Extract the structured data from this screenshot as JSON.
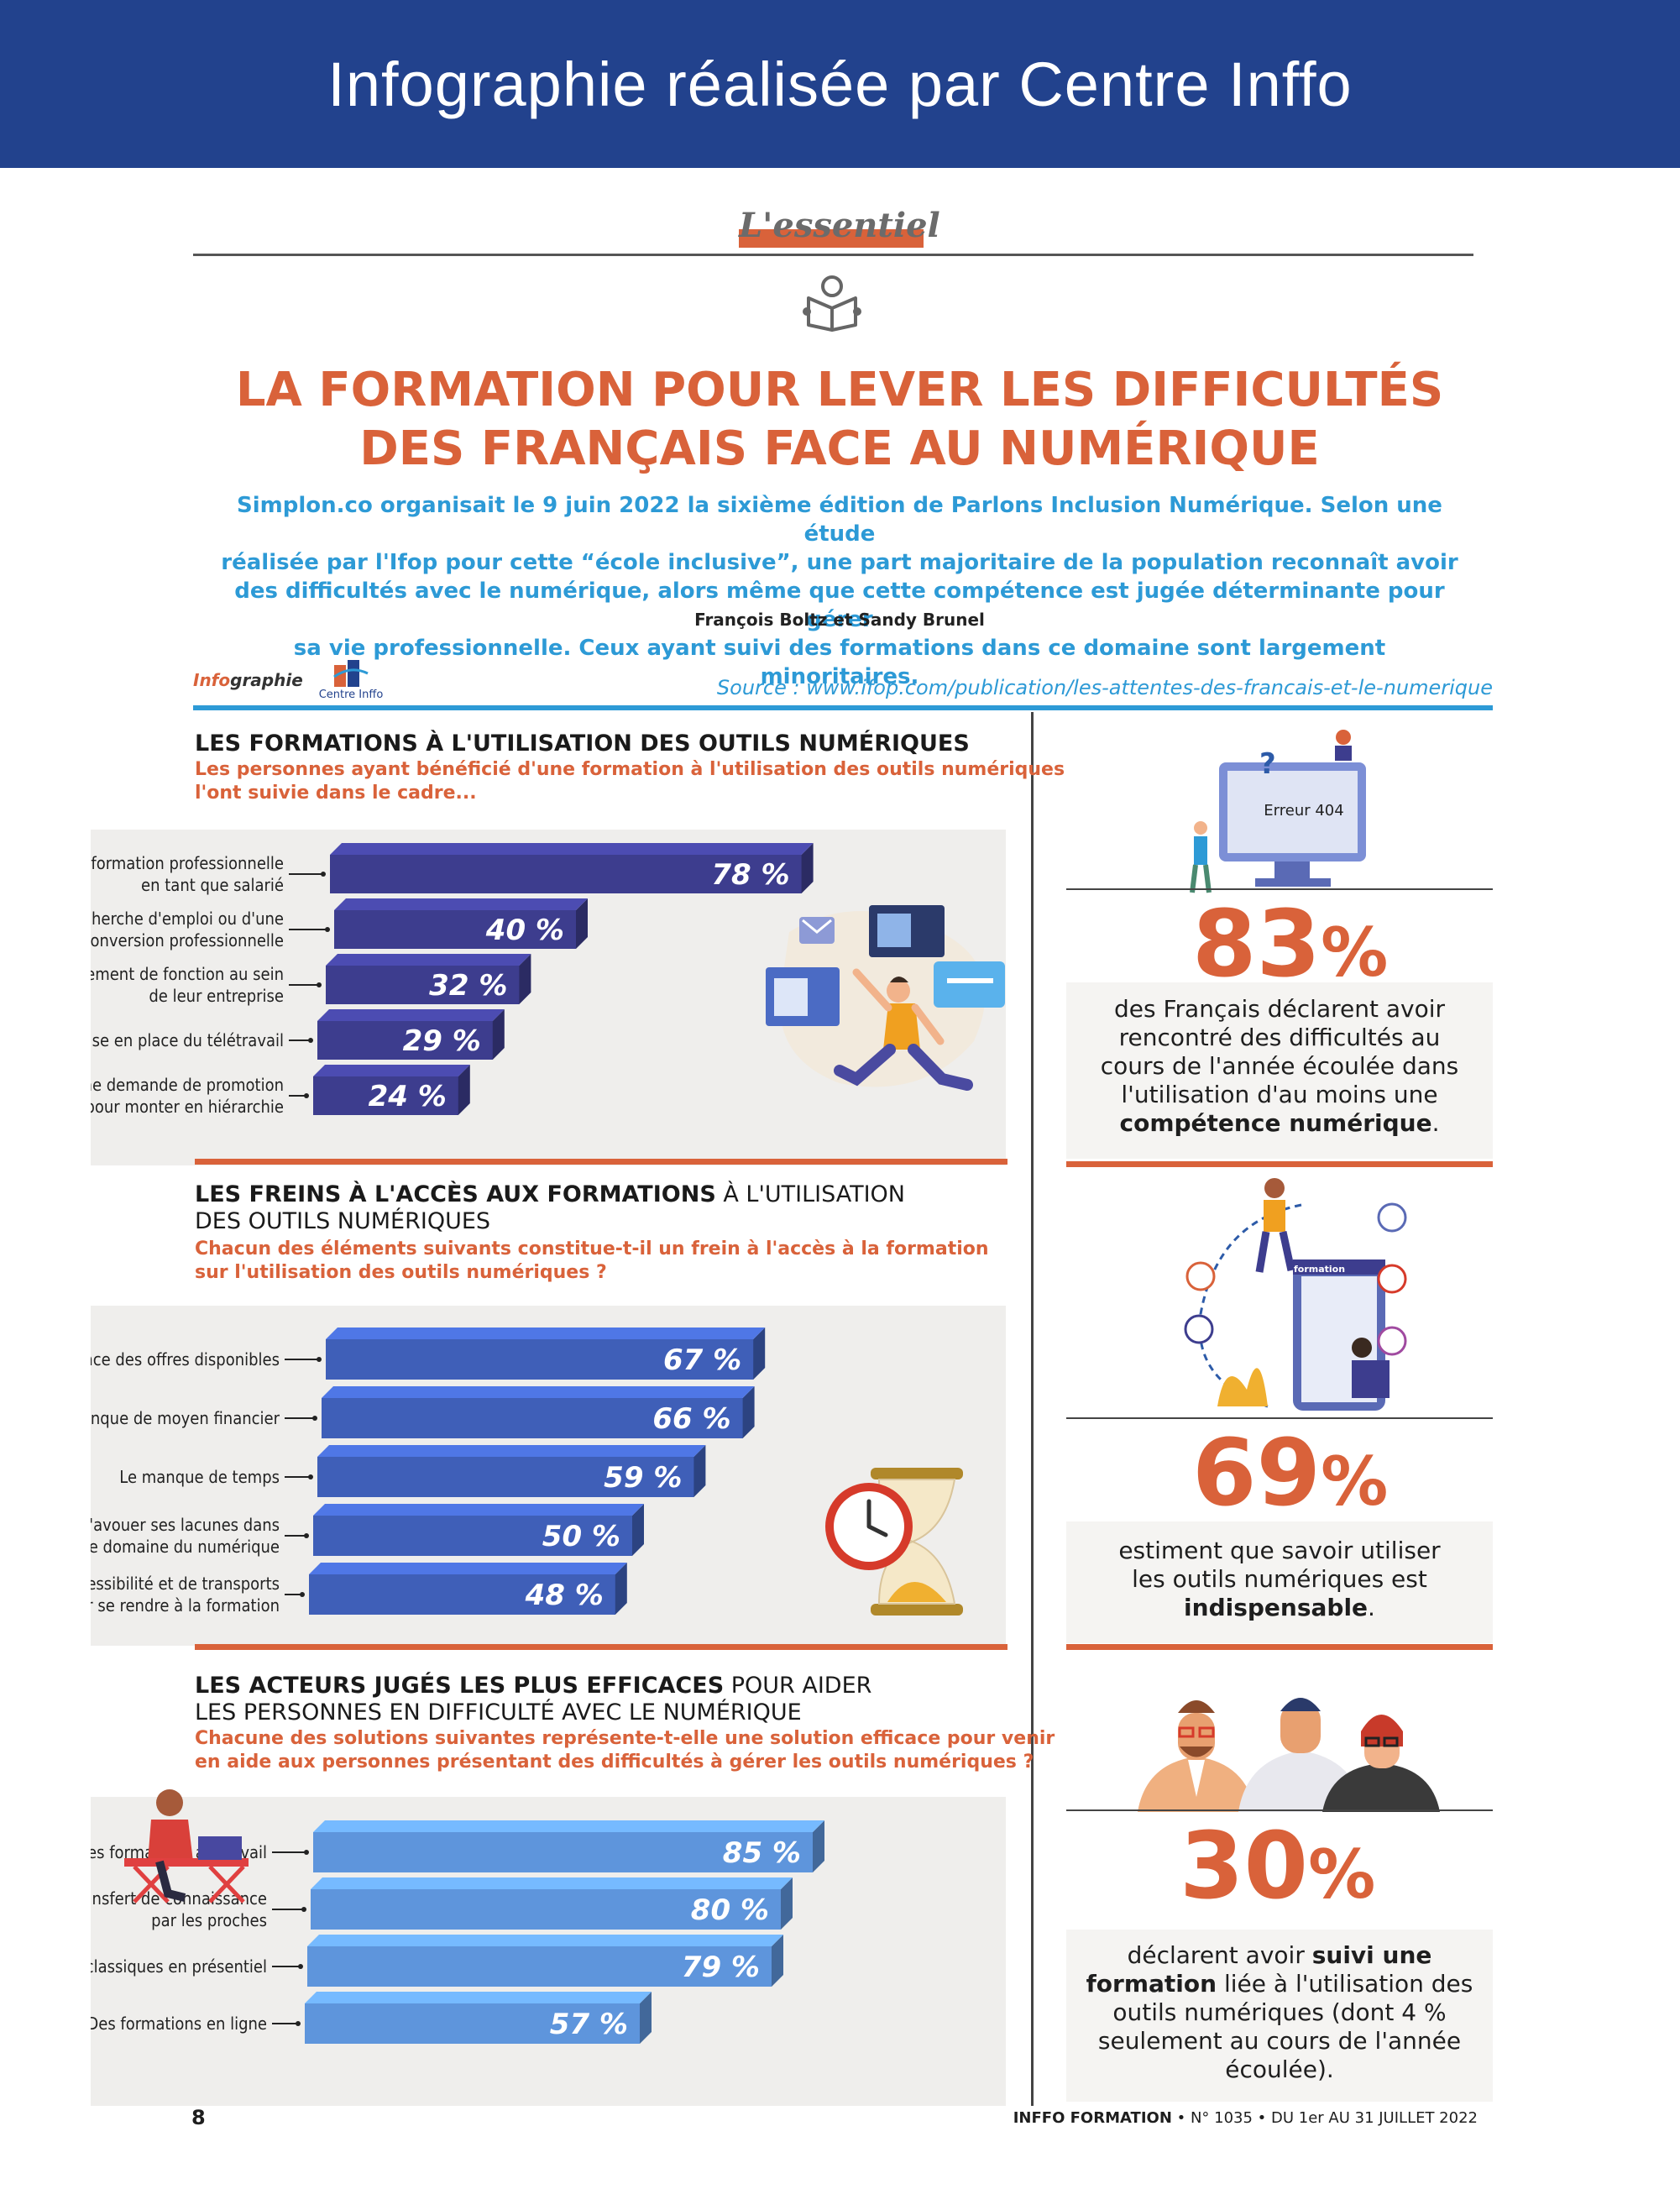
{
  "banner": {
    "title": "Infographie réalisée par Centre Inffo"
  },
  "header": {
    "tag": "L'essentiel",
    "title_line1": "LA FORMATION POUR LEVER LES DIFFICULTÉS",
    "title_line2": "DES FRANÇAIS FACE AU NUMÉRIQUE",
    "intro": [
      "Simplon.co organisait le 9 juin 2022 la sixième édition de Parlons Inclusion Numérique. Selon une étude",
      "réalisée par l'Ifop pour cette “école inclusive”, une part majoritaire de la population reconnaît avoir",
      "des difficultés avec le numérique, alors même que cette compétence est jugée déterminante pour gérer",
      "sa vie professionnelle. Ceux ayant suivi des formations dans ce domaine sont largement minoritaires."
    ],
    "authors": "François Boltz et Sandy Brunel",
    "infographie_prefix": "Info",
    "infographie_suffix": "graphie",
    "logo_text": "Centre Inffo",
    "source": "Source : www.ifop.com/publication/les-attentes-des-francais-et-le-numerique"
  },
  "stats": [
    {
      "value": "83",
      "pct": "%",
      "screen_text": "Erreur 404",
      "lines": [
        "des Français déclarent avoir",
        "rencontré des difficultés au",
        "cours de l'année écoulée dans",
        "l'utilisation d'au moins une"
      ],
      "bold_tail": "compétence numérique",
      "tail_end": "."
    },
    {
      "value": "69",
      "pct": "%",
      "screen_text": "formation",
      "lines": [
        "estiment que savoir utiliser",
        "les outils numériques est"
      ],
      "bold_tail": "indispensable",
      "tail_end": "."
    },
    {
      "value": "30",
      "pct": "%",
      "line1_a": "déclarent avoir ",
      "line1_b": "suivi une",
      "line2_a": "formation",
      "line2_b": " liée à l'utilisation des",
      "line3": "outils numériques (dont 4 %",
      "line4": "seulement au cours de l'année",
      "line5": "écoulée)."
    }
  ],
  "footer": {
    "page": "8",
    "brand": "INFFO FORMATION",
    "issue": " • N° 1035 • DU 1er AU 31 JUILLET 2022"
  },
  "chart_data": [
    {
      "type": "bar",
      "title_bold": "LES FORMATIONS À L'UTILISATION DES OUTILS NUMÉRIQUES",
      "title_rest": "",
      "subtitle": [
        "Les personnes ayant bénéficié d'une formation à l'utilisation des outils numériques",
        "l'ont suivie dans le cadre..."
      ],
      "categories": [
        [
          "... d'une formation professionnelle",
          "en tant que salarié"
        ],
        [
          "... d'une recherche d'emploi ou d'une",
          "reconversion professionnelle"
        ],
        [
          "... d'un changement de fonction au sein",
          "de leur entreprise"
        ],
        [
          "... de la mise en place du télétravail"
        ],
        [
          "... d'une demande de promotion",
          "professionnelle pour monter en hiérarchie"
        ]
      ],
      "values": [
        78,
        40,
        32,
        29,
        24
      ],
      "unit": "%",
      "color": "#3d3d8e"
    },
    {
      "type": "bar",
      "title_bold": "LES FREINS À L'ACCÈS AUX FORMATIONS",
      "title_rest": " À L'UTILISATION",
      "title_line2": "DES OUTILS NUMÉRIQUES",
      "subtitle": [
        "Chacun des éléments suivants constitue-t-il un frein à l'accès à la formation",
        "sur l'utilisation des outils numériques ?"
      ],
      "categories": [
        [
          "La méconnaissance des offres disponibles"
        ],
        [
          "Le manque de moyen financier"
        ],
        [
          "Le manque de temps"
        ],
        [
          "Le complexe d'avouer ses lacunes dans",
          "le domaine du numérique"
        ],
        [
          "Le problème d'accessibilité et de transports",
          "pour se rendre à la formation"
        ]
      ],
      "values": [
        67,
        66,
        59,
        50,
        48
      ],
      "unit": "%",
      "color": "#3f5fb8"
    },
    {
      "type": "bar",
      "title_bold": "LES ACTEURS JUGÉS LES PLUS EFFICACES",
      "title_rest": " POUR AIDER",
      "title_line2": "LES PERSONNES EN DIFFICULTÉ AVEC LE NUMÉRIQUE",
      "subtitle": [
        "Chacune des solutions suivantes représente-t-elle une solution efficace pour venir",
        "en aide aux personnes présentant des difficultés à gérer les outils numériques ?"
      ],
      "categories": [
        [
          "Des formations au travail"
        ],
        [
          "Le transfert de connaissance",
          "par les proches"
        ],
        [
          "Des formations classiques en présentiel"
        ],
        [
          "Des formations en ligne"
        ]
      ],
      "values": [
        85,
        80,
        79,
        57
      ],
      "unit": "%",
      "color": "#5e95dc"
    }
  ]
}
